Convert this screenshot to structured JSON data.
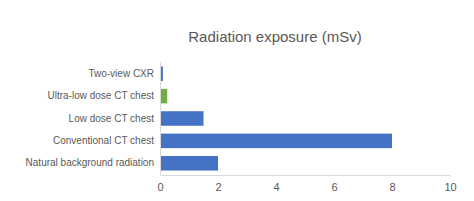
{
  "chart_data": {
    "type": "bar",
    "title": "Radiation exposure (mSv)",
    "orientation": "horizontal",
    "categories": [
      "Two-view CXR",
      "Ultra-low dose CT chest",
      "Low dose CT chest",
      "Conventional CT chest",
      "Natural background radiation"
    ],
    "values": [
      0.1,
      0.25,
      1.5,
      8,
      2
    ],
    "colors": [
      "#4472c4",
      "#70ad47",
      "#4472c4",
      "#4472c4",
      "#4472c4"
    ],
    "xlim": [
      0,
      10
    ],
    "xticks": [
      0,
      2,
      4,
      6,
      8,
      10
    ],
    "grid": false
  }
}
